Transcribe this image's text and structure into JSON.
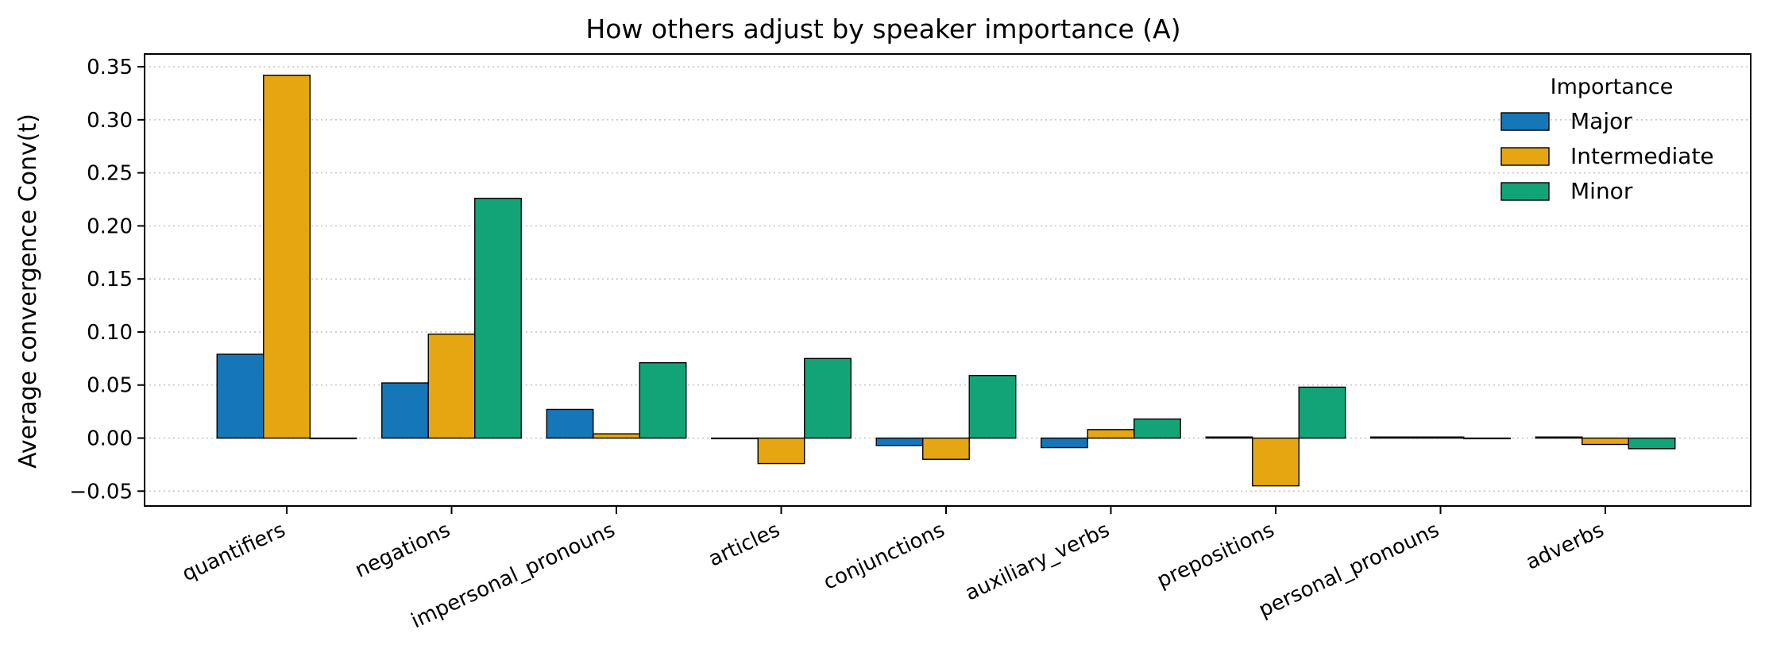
{
  "chart_data": {
    "type": "bar",
    "title": "How others adjust by speaker importance (A)",
    "xlabel": "",
    "ylabel": "Average convergence  Conv(t)",
    "ylim": [
      -0.064,
      0.362
    ],
    "yticks": [
      -0.05,
      0.0,
      0.05,
      0.1,
      0.15,
      0.2,
      0.25,
      0.3,
      0.35
    ],
    "ytick_labels": [
      "−0.05",
      "0.00",
      "0.05",
      "0.10",
      "0.15",
      "0.20",
      "0.25",
      "0.30",
      "0.35"
    ],
    "grid": "horizontal dotted",
    "legend": {
      "title": "Importance",
      "placement": "top-right"
    },
    "categories": [
      "quantifiers",
      "negations",
      "impersonal_pronouns",
      "articles",
      "conjunctions",
      "auxiliary_verbs",
      "prepositions",
      "personal_pronouns",
      "adverbs"
    ],
    "series": [
      {
        "name": "Major",
        "color": "#1577b8",
        "values": [
          0.079,
          0.052,
          0.027,
          0.0,
          -0.007,
          -0.009,
          0.001,
          0.001,
          0.001
        ]
      },
      {
        "name": "Intermediate",
        "color": "#e5a612",
        "values": [
          0.342,
          0.098,
          0.004,
          -0.024,
          -0.02,
          0.008,
          -0.045,
          0.001,
          -0.006
        ]
      },
      {
        "name": "Minor",
        "color": "#12a477",
        "values": [
          0.0,
          0.226,
          0.071,
          0.075,
          0.059,
          0.018,
          0.048,
          0.0,
          -0.01
        ]
      }
    ]
  }
}
